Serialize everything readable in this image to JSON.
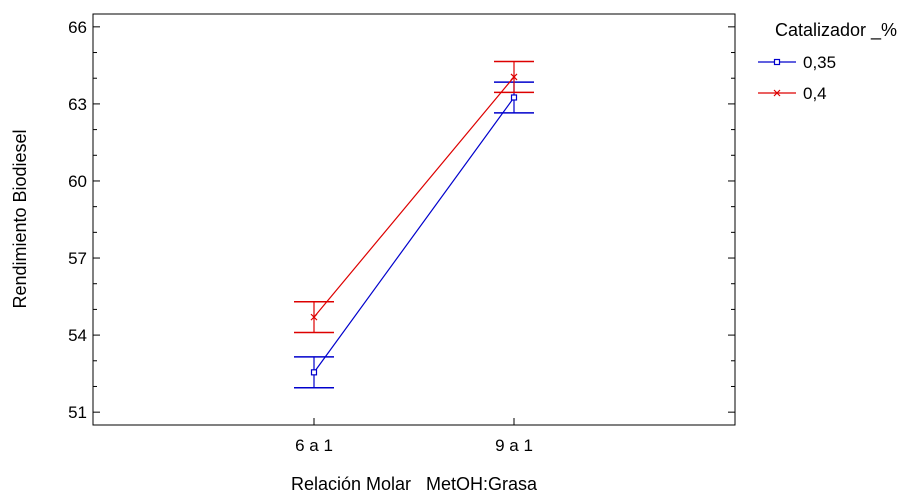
{
  "chart_data": {
    "type": "line",
    "title": "",
    "xlabel": "Relación Molar   MetOH:Grasa",
    "ylabel": "Rendimiento Biodiesel",
    "categories": [
      "6 a 1",
      "9 a 1"
    ],
    "ylim": [
      50.5,
      66.5
    ],
    "yticks": [
      51,
      54,
      57,
      60,
      63,
      66
    ],
    "ytick_labels": [
      "51",
      "54",
      "57",
      "60",
      "63",
      "66"
    ],
    "grid": false,
    "legend": {
      "title": "Catalizador _%",
      "placement": "right"
    },
    "series": [
      {
        "name": "0,35",
        "color": "#0000cc",
        "marker": "square",
        "values": [
          52.55,
          63.25
        ],
        "ci_lower": [
          51.95,
          62.65
        ],
        "ci_upper": [
          53.15,
          63.85
        ]
      },
      {
        "name": "0,4",
        "color": "#dd0000",
        "marker": "x",
        "values": [
          54.7,
          64.05
        ],
        "ci_lower": [
          54.1,
          63.45
        ],
        "ci_upper": [
          55.3,
          64.65
        ]
      }
    ]
  }
}
